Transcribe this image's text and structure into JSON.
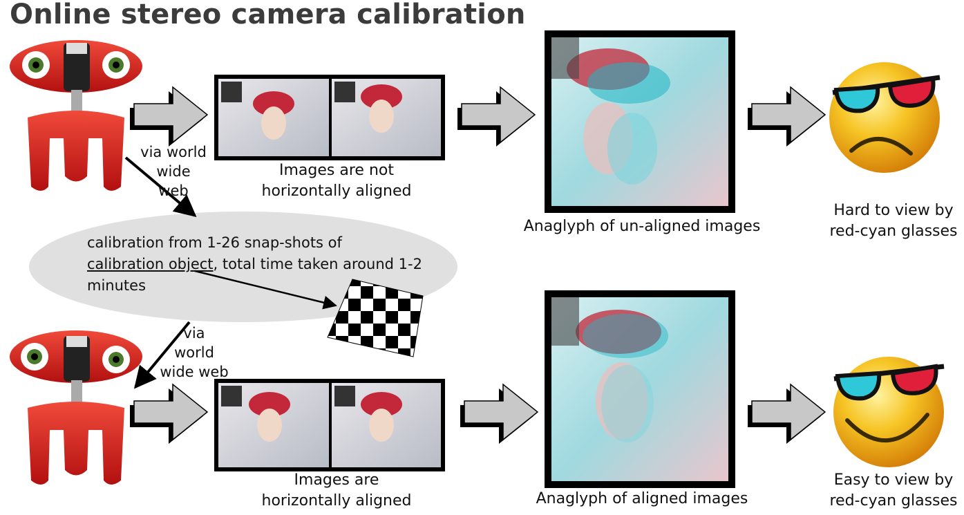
{
  "title": "Online stereo camera calibration",
  "labels": {
    "via_top_1": "via world",
    "via_top_2": "wide",
    "via_top_3": "web",
    "via_bottom_1": "via",
    "via_bottom_2": "world",
    "via_bottom_3": "wide web",
    "not_aligned_1": "Images are not",
    "not_aligned_2": "horizontally aligned",
    "aligned_1": "Images are",
    "aligned_2": "horizontally aligned",
    "anaglyph_unaligned": "Anaglyph of un-aligned images",
    "anaglyph_aligned": "Anaglyph of aligned images",
    "hard_1": "Hard to view by",
    "hard_2": "red-cyan glasses",
    "easy_1": "Easy to view by",
    "easy_2": "red-cyan glasses"
  },
  "ellipse": {
    "line1": "calibration from 1-26 snap-shots of",
    "line2_link": "calibration object",
    "line2_rest": ", total time taken around 1-2",
    "line3": "minutes"
  },
  "colors": {
    "robot_red": "#d42020",
    "arrow_gray": "#c8c8c8",
    "ellipse_gray": "#e0e0e0",
    "face_yellow": "#f3b21a",
    "lens_cyan": "#2ec8d8",
    "lens_red": "#e0203a"
  }
}
